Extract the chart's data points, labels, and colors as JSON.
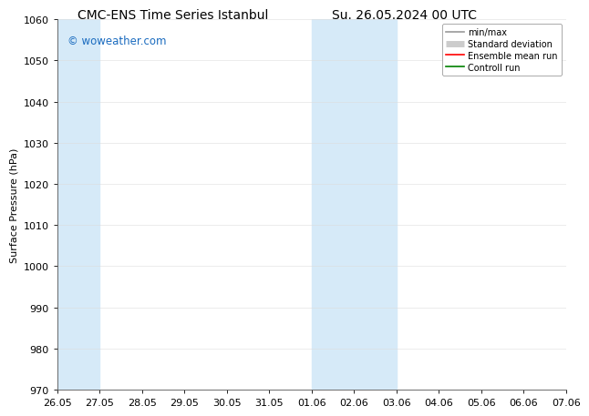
{
  "title_left": "CMC-ENS Time Series Istanbul",
  "title_right": "Su. 26.05.2024 00 UTC",
  "ylabel": "Surface Pressure (hPa)",
  "ylim": [
    970,
    1060
  ],
  "yticks": [
    970,
    980,
    990,
    1000,
    1010,
    1020,
    1030,
    1040,
    1050,
    1060
  ],
  "xtick_labels": [
    "26.05",
    "27.05",
    "28.05",
    "29.05",
    "30.05",
    "31.05",
    "01.06",
    "02.06",
    "03.06",
    "04.06",
    "05.06",
    "06.06",
    "07.06"
  ],
  "xtick_positions": [
    0,
    1,
    2,
    3,
    4,
    5,
    6,
    7,
    8,
    9,
    10,
    11,
    12
  ],
  "shaded_regions": [
    {
      "x_start": 0,
      "x_end": 1,
      "color": "#d6eaf8"
    },
    {
      "x_start": 6,
      "x_end": 7,
      "color": "#d6eaf8"
    },
    {
      "x_start": 7,
      "x_end": 8,
      "color": "#d6eaf8"
    }
  ],
  "watermark_text": "© woweather.com",
  "watermark_color": "#1a6bbf",
  "legend_items": [
    {
      "label": "min/max",
      "color": "#999999",
      "linestyle": "-",
      "linewidth": 1.2
    },
    {
      "label": "Standard deviation",
      "color": "#cccccc",
      "linestyle": "-",
      "linewidth": 5
    },
    {
      "label": "Ensemble mean run",
      "color": "red",
      "linestyle": "-",
      "linewidth": 1.2
    },
    {
      "label": "Controll run",
      "color": "green",
      "linestyle": "-",
      "linewidth": 1.2
    }
  ],
  "bg_color": "#ffffff",
  "plot_bg_color": "#ffffff",
  "title_fontsize": 10,
  "axis_label_fontsize": 8,
  "tick_fontsize": 8,
  "legend_fontsize": 7
}
